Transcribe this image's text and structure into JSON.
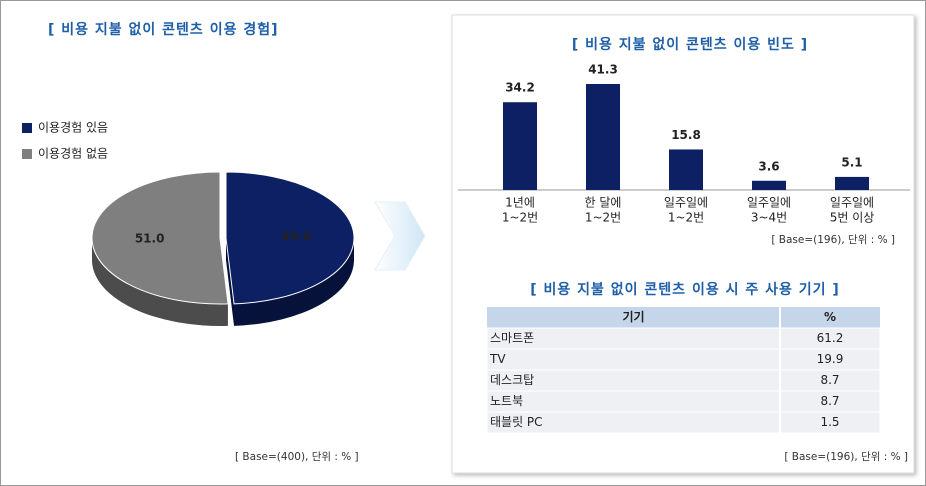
{
  "chart_data": [
    {
      "type": "pie",
      "title": "[ 비용 지불 없이 콘텐츠 이용 경험]",
      "categories": [
        "이용경험 있음",
        "이용경험 없음"
      ],
      "values": [
        49.0,
        51.0
      ],
      "value_labels": [
        "49.0",
        "51.0"
      ],
      "colors": [
        "#0c2063",
        "#7f7f7f"
      ],
      "note": "[ Base=(400), 단위 : % ]"
    },
    {
      "type": "bar",
      "title": "[ 비용 지불 없이 콘텐츠 이용 빈도 ]",
      "categories": [
        [
          "1년에",
          "1~2번"
        ],
        [
          "한 달에",
          "1~2번"
        ],
        [
          "일주일에",
          "1~2번"
        ],
        [
          "일주일에",
          "3~4번"
        ],
        [
          "일주일에",
          "5번 이상"
        ]
      ],
      "values": [
        34.2,
        41.3,
        15.8,
        3.6,
        5.1
      ],
      "color": "#0c2063",
      "note": "[ Base=(196), 단위 : % ]"
    }
  ],
  "table": {
    "title": "[ 비용 지불 없이 콘텐츠 이용 시 주 사용 기기 ]",
    "header": [
      "기기",
      "%"
    ],
    "rows": [
      [
        "스마트폰",
        61.2
      ],
      [
        "TV",
        19.9
      ],
      [
        "데스크탑",
        8.7
      ],
      [
        "노트북",
        8.7
      ],
      [
        "태블릿 PC",
        1.5
      ]
    ],
    "note": "[ Base=(196), 단위 : % ]"
  }
}
